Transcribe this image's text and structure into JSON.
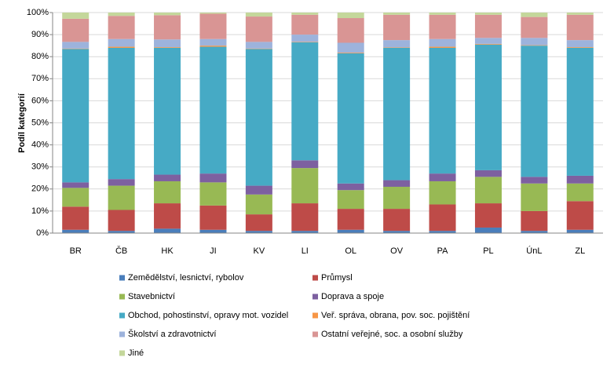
{
  "chart_data": {
    "type": "stacked-bar",
    "y_label": "Podíl kategorií",
    "categories": [
      "BR",
      "ČB",
      "HK",
      "JI",
      "KV",
      "LI",
      "OL",
      "OV",
      "PA",
      "PL",
      "ÚnL",
      "ZL"
    ],
    "ylim": [
      0,
      100
    ],
    "yticks": [
      {
        "value": 0,
        "label": "0%"
      },
      {
        "value": 10,
        "label": "10%"
      },
      {
        "value": 20,
        "label": "20%"
      },
      {
        "value": 30,
        "label": "30%"
      },
      {
        "value": 40,
        "label": "40%"
      },
      {
        "value": 50,
        "label": "50%"
      },
      {
        "value": 60,
        "label": "60%"
      },
      {
        "value": 70,
        "label": "70%"
      },
      {
        "value": 80,
        "label": "80%"
      },
      {
        "value": 90,
        "label": "90%"
      },
      {
        "value": 100,
        "label": "100%"
      }
    ],
    "grid": true,
    "series": [
      {
        "name": "Zemědělství, lesnictví, rybolov",
        "color": "#4a7ebb",
        "values": [
          1.5,
          1,
          2,
          1.5,
          1,
          1,
          1.5,
          1,
          1,
          2.5,
          1,
          1.5
        ]
      },
      {
        "name": "Průmysl",
        "color": "#be4b48",
        "values": [
          10.5,
          9.5,
          11.5,
          11,
          7.5,
          12.5,
          9.5,
          10,
          12,
          11,
          9,
          13
        ]
      },
      {
        "name": "Stavebnictví",
        "color": "#98b954",
        "values": [
          8.5,
          11,
          10,
          10.5,
          9,
          16,
          8.5,
          10,
          10.5,
          12,
          12.5,
          8
        ]
      },
      {
        "name": "Doprava a spoje",
        "color": "#7d60a0",
        "values": [
          2.5,
          3,
          3,
          4,
          4,
          3.5,
          3,
          3,
          3.5,
          3,
          3,
          3.5
        ]
      },
      {
        "name": "Obchod, pohostinství,  opravy mot. vozidel",
        "color": "#46aac5",
        "values": [
          60.5,
          59.5,
          57.5,
          57.5,
          62,
          53.5,
          59,
          60,
          57,
          57,
          59.5,
          58
        ]
      },
      {
        "name": "Veř. správa, obrana, pov. soc. pojištění",
        "color": "#f79646",
        "values": [
          0.2,
          0.5,
          0.3,
          0.5,
          0.2,
          0.2,
          0.3,
          0.2,
          0.5,
          0.3,
          0.2,
          0.3
        ]
      },
      {
        "name": "Školství a zdravotnictví",
        "color": "#9db3dc",
        "values": [
          3,
          3.5,
          3.5,
          3,
          3,
          3.3,
          4.5,
          3.3,
          3.5,
          2.7,
          3.3,
          3.2
        ]
      },
      {
        "name": "Ostatní veřejné, soc. a osobní služby",
        "color": "#d99594",
        "values": [
          10.5,
          10.5,
          11,
          11.5,
          11.5,
          9,
          11.2,
          11.5,
          11,
          10.5,
          9.5,
          11.5
        ]
      },
      {
        "name": "Jiné",
        "color": "#c4d79b",
        "values": [
          2.8,
          1.5,
          1.2,
          0.5,
          1.8,
          1,
          2.5,
          1,
          1,
          1,
          2,
          1
        ]
      }
    ]
  }
}
